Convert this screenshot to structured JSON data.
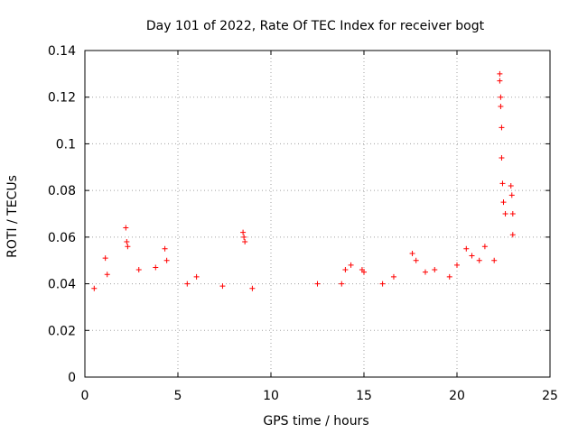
{
  "chart_data": {
    "type": "scatter",
    "title": "Day 101 of 2022, Rate Of TEC Index for receiver bogt",
    "xlabel": "GPS time / hours",
    "ylabel": "ROTI / TECUs",
    "xlim": [
      0,
      25
    ],
    "ylim": [
      0,
      0.14
    ],
    "xticks": [
      "0",
      "5",
      "10",
      "15",
      "20",
      "25"
    ],
    "yticks": [
      "0",
      "0.02",
      "0.04",
      "0.06",
      "0.08",
      "0.1",
      "0.12",
      "0.14"
    ],
    "grid": true,
    "marker": "+",
    "color": "#ff0000",
    "series": [
      {
        "name": "ROTI",
        "x": [
          0.5,
          1.1,
          1.2,
          2.2,
          2.25,
          2.3,
          2.9,
          3.8,
          4.3,
          4.4,
          5.5,
          6.0,
          7.4,
          8.5,
          8.55,
          8.6,
          9.0,
          12.5,
          13.8,
          14.0,
          14.3,
          14.9,
          15.0,
          16.0,
          16.6,
          17.6,
          17.8,
          18.3,
          18.8,
          19.6,
          20.0,
          20.5,
          20.8,
          21.2,
          21.5,
          22.0,
          22.3,
          22.3,
          22.35,
          22.35,
          22.4,
          22.4,
          22.45,
          22.5,
          22.6,
          22.9,
          22.95,
          23.0,
          23.0
        ],
        "y": [
          0.038,
          0.051,
          0.044,
          0.064,
          0.058,
          0.056,
          0.046,
          0.047,
          0.055,
          0.05,
          0.04,
          0.043,
          0.039,
          0.062,
          0.06,
          0.058,
          0.038,
          0.04,
          0.04,
          0.046,
          0.048,
          0.046,
          0.045,
          0.04,
          0.043,
          0.053,
          0.05,
          0.045,
          0.046,
          0.043,
          0.048,
          0.055,
          0.052,
          0.05,
          0.056,
          0.05,
          0.13,
          0.127,
          0.12,
          0.116,
          0.107,
          0.094,
          0.083,
          0.075,
          0.07,
          0.082,
          0.078,
          0.07,
          0.061
        ]
      }
    ]
  }
}
